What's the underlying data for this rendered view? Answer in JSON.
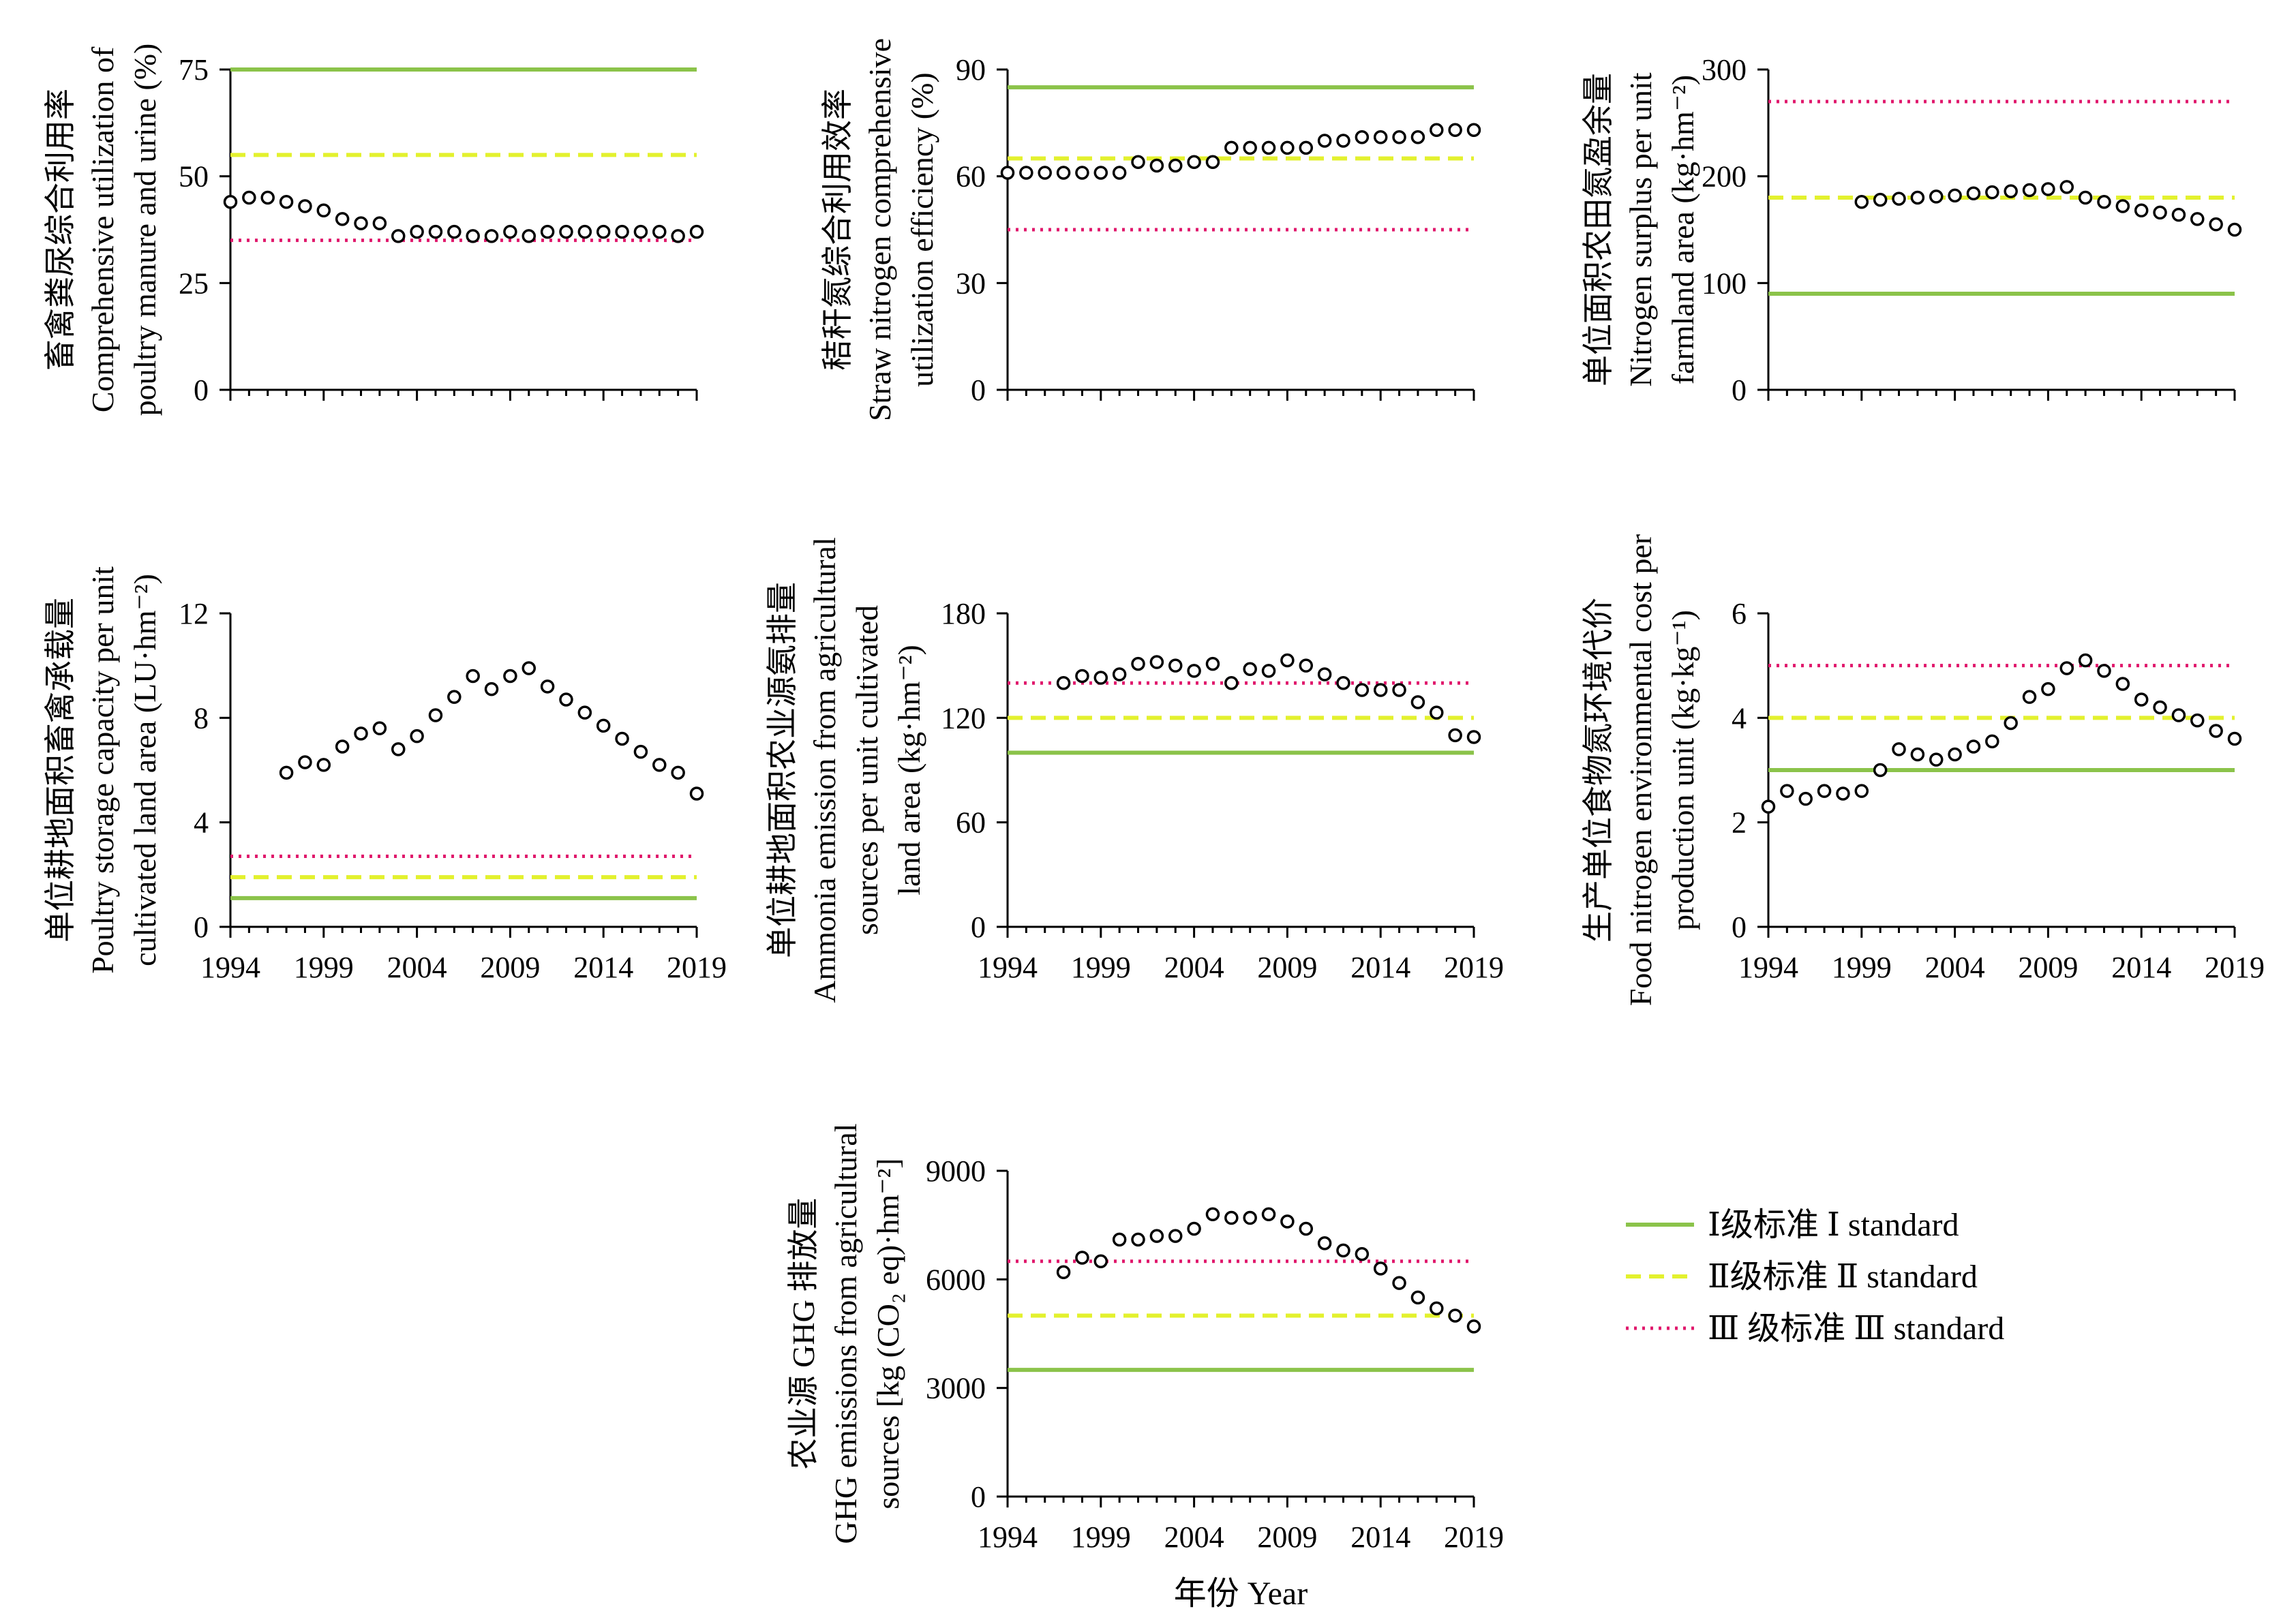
{
  "colors": {
    "level1": "#8bc34a",
    "level2": "#e3f12e",
    "level3": "#e0186c",
    "marker": "#000000",
    "axis": "#000000"
  },
  "chart_data": [
    {
      "type": "scatter",
      "ylabel": [
        "畜禽粪尿综合利用率",
        "Comprehensive utilization of",
        "poultry manure and urine (%)"
      ],
      "ylim": [
        0,
        75
      ],
      "yticks": [
        0,
        25,
        50,
        75
      ],
      "xlim": [
        1994,
        2019
      ],
      "xticks": [],
      "standards": {
        "level1": 75,
        "level2": 55,
        "level3": 35
      },
      "x": [
        1994,
        1995,
        1996,
        1997,
        1998,
        1999,
        2000,
        2001,
        2002,
        2003,
        2004,
        2005,
        2006,
        2007,
        2008,
        2009,
        2010,
        2011,
        2012,
        2013,
        2014,
        2015,
        2016,
        2017,
        2018,
        2019
      ],
      "y": [
        44,
        45,
        45,
        44,
        43,
        42,
        40,
        39,
        39,
        36,
        37,
        37,
        37,
        36,
        36,
        37,
        36,
        37,
        37,
        37,
        37,
        37,
        37,
        37,
        36,
        37
      ]
    },
    {
      "type": "scatter",
      "ylabel": [
        "秸秆氮综合利用效率",
        "Straw nitrogen comprehensive",
        "utilization efficiency (%)"
      ],
      "ylim": [
        0,
        90
      ],
      "yticks": [
        0,
        30,
        60,
        90
      ],
      "xlim": [
        1994,
        2019
      ],
      "xticks": [],
      "standards": {
        "level1": 85,
        "level2": 65,
        "level3": 45
      },
      "x": [
        1994,
        1995,
        1996,
        1997,
        1998,
        1999,
        2000,
        2001,
        2002,
        2003,
        2004,
        2005,
        2006,
        2007,
        2008,
        2009,
        2010,
        2011,
        2012,
        2013,
        2014,
        2015,
        2016,
        2017,
        2018,
        2019
      ],
      "y": [
        61,
        61,
        61,
        61,
        61,
        61,
        61,
        64,
        63,
        63,
        64,
        64,
        68,
        68,
        68,
        68,
        68,
        70,
        70,
        71,
        71,
        71,
        71,
        73,
        73,
        73
      ]
    },
    {
      "type": "scatter",
      "ylabel": [
        "单位面积农田氮盈余量",
        "Nitrogen surplus per unit",
        "farmland area (kg·hm⁻²)"
      ],
      "ylim": [
        0,
        300
      ],
      "yticks": [
        0,
        100,
        200,
        300
      ],
      "xlim": [
        1994,
        2019
      ],
      "xticks": [],
      "standards": {
        "level1": 90,
        "level2": 180,
        "level3": 270
      },
      "x": [
        1999,
        2000,
        2001,
        2002,
        2003,
        2004,
        2005,
        2006,
        2007,
        2008,
        2009,
        2010,
        2011,
        2012,
        2013,
        2014,
        2015,
        2016,
        2017,
        2018,
        2019
      ],
      "y": [
        176,
        178,
        179,
        180,
        181,
        182,
        184,
        185,
        186,
        187,
        188,
        190,
        180,
        176,
        172,
        168,
        166,
        164,
        160,
        155,
        150
      ]
    },
    {
      "type": "scatter",
      "ylabel": [
        "单位耕地面积畜禽承载量",
        "Poultry storage capacity per unit",
        "cultivated land area (LU·hm⁻²)"
      ],
      "ylim": [
        0,
        12
      ],
      "yticks": [
        0,
        4,
        8,
        12
      ],
      "xlim": [
        1994,
        2019
      ],
      "xticks": [
        "1994",
        "1999",
        "2004",
        "2009",
        "2014",
        "2019"
      ],
      "standards": {
        "level1": 1.1,
        "level2": 1.9,
        "level3": 2.7
      },
      "x": [
        1997,
        1998,
        1999,
        2000,
        2001,
        2002,
        2003,
        2004,
        2005,
        2006,
        2007,
        2008,
        2009,
        2010,
        2011,
        2012,
        2013,
        2014,
        2015,
        2016,
        2017,
        2018,
        2019
      ],
      "y": [
        5.9,
        6.3,
        6.2,
        6.9,
        7.4,
        7.6,
        6.8,
        7.3,
        8.1,
        8.8,
        9.6,
        9.1,
        9.6,
        9.9,
        9.2,
        8.7,
        8.2,
        7.7,
        7.2,
        6.7,
        6.2,
        5.9,
        5.1
      ]
    },
    {
      "type": "scatter",
      "ylabel": [
        "单位耕地面积农业源氨排量",
        "Ammonia emission from agricultural",
        "sources per unit cultivated",
        "land area (kg·hm⁻²)"
      ],
      "ylim": [
        0,
        180
      ],
      "yticks": [
        0,
        60,
        120,
        180
      ],
      "xlim": [
        1994,
        2019
      ],
      "xticks": [
        "1994",
        "1999",
        "2004",
        "2009",
        "2014",
        "2019"
      ],
      "standards": {
        "level1": 100,
        "level2": 120,
        "level3": 140
      },
      "x": [
        1997,
        1998,
        1999,
        2000,
        2001,
        2002,
        2003,
        2004,
        2005,
        2006,
        2007,
        2008,
        2009,
        2010,
        2011,
        2012,
        2013,
        2014,
        2015,
        2016,
        2017,
        2018,
        2019
      ],
      "y": [
        140,
        144,
        143,
        145,
        151,
        152,
        150,
        147,
        151,
        140,
        148,
        147,
        153,
        150,
        145,
        140,
        136,
        136,
        136,
        129,
        123,
        110,
        109
      ]
    },
    {
      "type": "scatter",
      "ylabel": [
        "生产单位食物氮环境代价",
        "Food nitrogen environmental cost per",
        "production unit (kg·kg⁻¹)"
      ],
      "ylim": [
        0,
        6
      ],
      "yticks": [
        0,
        2,
        4,
        6
      ],
      "xlim": [
        1994,
        2019
      ],
      "xticks": [
        "1994",
        "1999",
        "2004",
        "2009",
        "2014",
        "2019"
      ],
      "standards": {
        "level1": 3,
        "level2": 4,
        "level3": 5
      },
      "x": [
        1994,
        1995,
        1996,
        1997,
        1998,
        1999,
        2000,
        2001,
        2002,
        2003,
        2004,
        2005,
        2006,
        2007,
        2008,
        2009,
        2010,
        2011,
        2012,
        2013,
        2014,
        2015,
        2016,
        2017,
        2018,
        2019
      ],
      "y": [
        2.3,
        2.6,
        2.45,
        2.6,
        2.55,
        2.6,
        3.0,
        3.4,
        3.3,
        3.2,
        3.3,
        3.45,
        3.55,
        3.9,
        4.4,
        4.55,
        4.95,
        5.1,
        4.9,
        4.65,
        4.35,
        4.2,
        4.05,
        3.95,
        3.75,
        3.6
      ]
    },
    {
      "type": "scatter",
      "ylabel": [
        "农业源 GHG 排放量",
        "GHG emissions from agricultural",
        "sources [kg (CO₂ eq)·hm⁻²]"
      ],
      "xlabel": "年份 Year",
      "ylim": [
        0,
        9000
      ],
      "yticks": [
        0,
        3000,
        6000,
        9000
      ],
      "xlim": [
        1994,
        2019
      ],
      "xticks": [
        "1994",
        "1999",
        "2004",
        "2009",
        "2014",
        "2019"
      ],
      "standards": {
        "level1": 3500,
        "level2": 5000,
        "level3": 6500
      },
      "x": [
        1997,
        1998,
        1999,
        2000,
        2001,
        2002,
        2003,
        2004,
        2005,
        2006,
        2007,
        2008,
        2009,
        2010,
        2011,
        2012,
        2013,
        2014,
        2015,
        2016,
        2017,
        2018,
        2019
      ],
      "y": [
        6200,
        6600,
        6500,
        7100,
        7100,
        7200,
        7200,
        7400,
        7800,
        7700,
        7700,
        7800,
        7600,
        7400,
        7000,
        6800,
        6700,
        6300,
        5900,
        5500,
        5200,
        5000,
        4700
      ]
    }
  ],
  "legend": [
    {
      "key": "level1",
      "label": "Ⅰ级标准 Ⅰ standard",
      "dash": ""
    },
    {
      "key": "level2",
      "label": "Ⅱ级标准 Ⅱ standard",
      "dash": "22 12"
    },
    {
      "key": "level3",
      "label": "Ⅲ 级标准 Ⅲ standard",
      "dash": "4 8"
    }
  ]
}
